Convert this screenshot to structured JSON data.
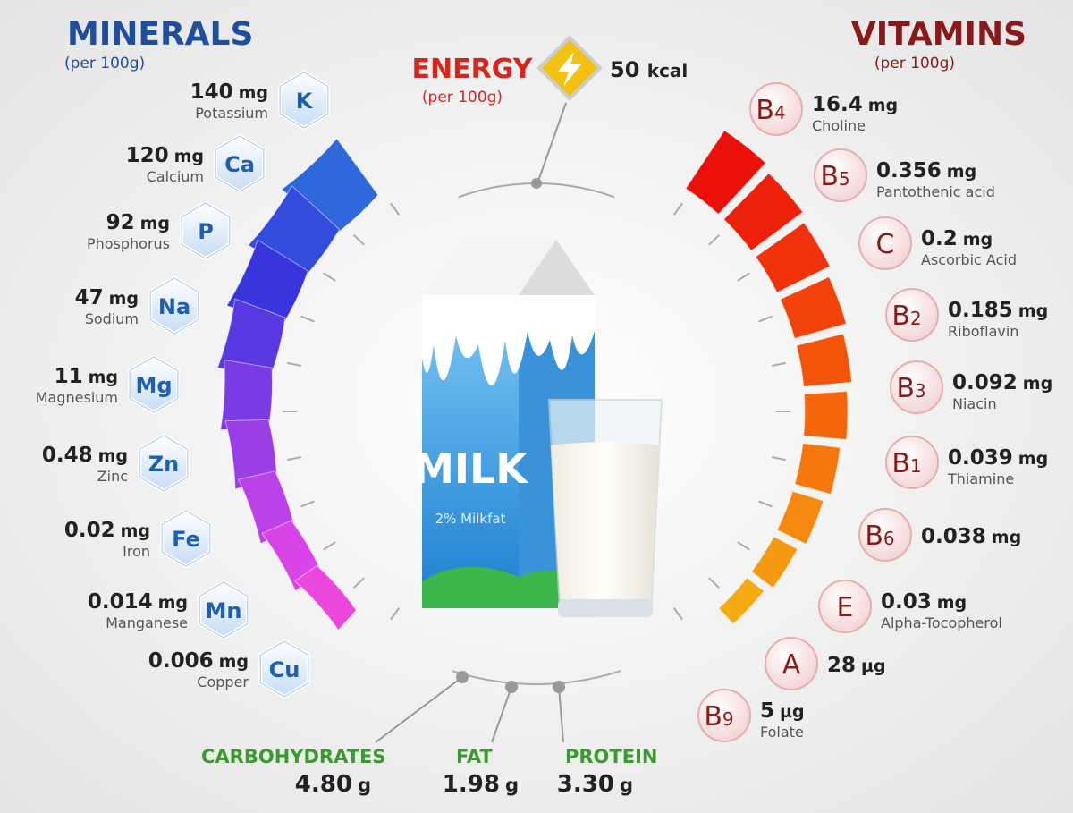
{
  "minerals": {
    "title": "MINERALS",
    "subtitle": "(per 100g)",
    "items": [
      {
        "symbol": "K",
        "amount": "140",
        "unit": "mg",
        "name": "Potassium"
      },
      {
        "symbol": "Ca",
        "amount": "120",
        "unit": "mg",
        "name": "Calcium"
      },
      {
        "symbol": "P",
        "amount": "92",
        "unit": "mg",
        "name": "Phosphorus"
      },
      {
        "symbol": "Na",
        "amount": "47",
        "unit": "mg",
        "name": "Sodium"
      },
      {
        "symbol": "Mg",
        "amount": "11",
        "unit": "mg",
        "name": "Magnesium"
      },
      {
        "symbol": "Zn",
        "amount": "0.48",
        "unit": "mg",
        "name": "Zinc"
      },
      {
        "symbol": "Fe",
        "amount": "0.02",
        "unit": "mg",
        "name": "Iron"
      },
      {
        "symbol": "Mn",
        "amount": "0.014",
        "unit": "mg",
        "name": "Manganese"
      },
      {
        "symbol": "Cu",
        "amount": "0.006",
        "unit": "mg",
        "name": "Copper"
      }
    ]
  },
  "vitamins": {
    "title": "VITAMINS",
    "subtitle": "(per 100g)",
    "items": [
      {
        "symbol": "B",
        "sub": "4",
        "amount": "16.4",
        "unit": "mg",
        "name": "Choline"
      },
      {
        "symbol": "B",
        "sub": "5",
        "amount": "0.356",
        "unit": "mg",
        "name": "Pantothenic acid"
      },
      {
        "symbol": "C",
        "amount": "0.2",
        "unit": "mg",
        "name": "Ascorbic Acid"
      },
      {
        "symbol": "B",
        "sub": "2",
        "amount": "0.185",
        "unit": "mg",
        "name": "Riboflavin"
      },
      {
        "symbol": "B",
        "sub": "3",
        "amount": "0.092",
        "unit": "mg",
        "name": "Niacin"
      },
      {
        "symbol": "B",
        "sub": "1",
        "amount": "0.039",
        "unit": "mg",
        "name": "Thiamine"
      },
      {
        "symbol": "B",
        "sub": "6",
        "amount": "0.038",
        "unit": "mg"
      },
      {
        "symbol": "E",
        "amount": "0.03",
        "unit": "mg",
        "name": "Alpha-Tocopherol"
      },
      {
        "symbol": "A",
        "amount": "28",
        "unit": "µg"
      },
      {
        "symbol": "B",
        "sub": "9",
        "amount": "5",
        "unit": "µg",
        "name": "Folate"
      }
    ]
  },
  "energy": {
    "title": "ENERGY",
    "subtitle": "(per 100g)",
    "amount": "50",
    "unit": "kcal"
  },
  "macros": [
    {
      "name": "CARBOHYDRATES",
      "amount": "4.80",
      "unit": "g"
    },
    {
      "name": "FAT",
      "amount": "1.98",
      "unit": "g"
    },
    {
      "name": "PROTEIN",
      "amount": "3.30",
      "unit": "g"
    }
  ],
  "carton": {
    "label": "MILK",
    "sublabel": "2% Milkfat"
  }
}
